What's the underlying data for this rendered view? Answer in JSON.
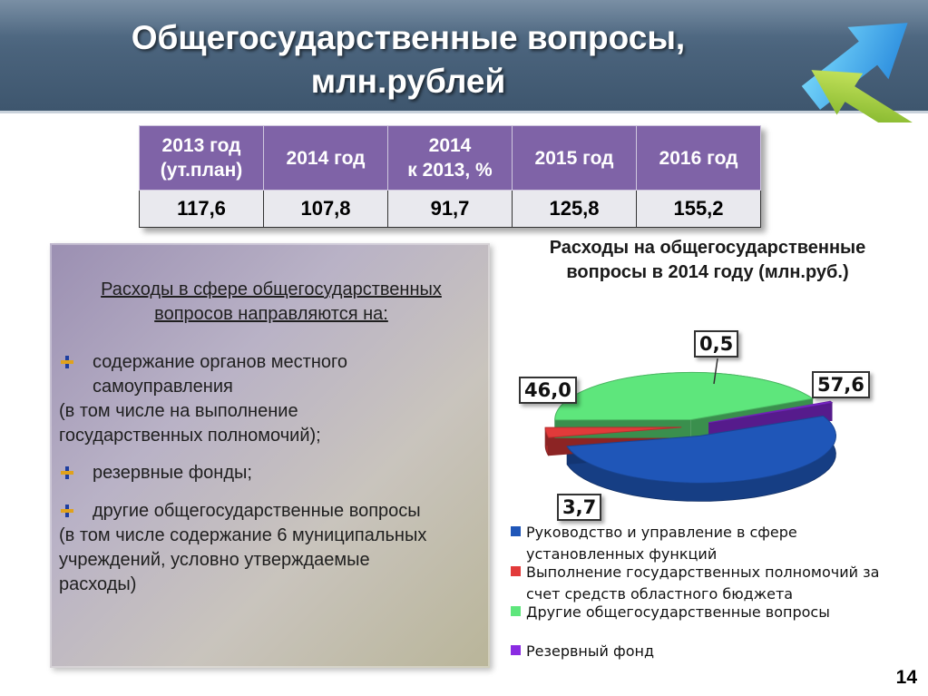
{
  "slide": {
    "title_line1": "Общегосударственные вопросы,",
    "title_line2": "млн.рублей",
    "page_number": "14"
  },
  "table": {
    "headers": [
      "2013 год\n(ут.план)",
      "2014 год",
      "2014\nк 2013, %",
      "2015 год",
      "2016 год"
    ],
    "values": [
      "117,6",
      "107,8",
      "91,7",
      "125,8",
      "155,2"
    ]
  },
  "textbox": {
    "heading": "Расходы в сфере общегосударственных вопросов направляются на:",
    "item1_line1": "содержание органов местного",
    "item1_line2": "самоуправления",
    "item1_line3": "(в том числе на выполнение",
    "item1_line4": "государственных полномочий);",
    "item2_line1": "резервные фонды;",
    "item3_line1": "другие общегосударственные вопросы",
    "item3_line2": "(в том числе содержание 6 муниципальных",
    "item3_line3": "учреждений, условно утверждаемые",
    "item3_line4": "расходы)"
  },
  "chart_data": {
    "type": "pie",
    "title": "Расходы на общегосударственные вопросы в 2014 году (млн.руб.)",
    "categories": [
      "Руководство и управление в сфере установленных функций",
      "Выполнение государственных полномочий за счет средств областного бюджета",
      "Другие общегосударственные вопросы",
      "Резервный фонд"
    ],
    "values": [
      57.6,
      3.7,
      46.0,
      0.5
    ],
    "value_labels": [
      "57,6",
      "3,7",
      "46,0",
      "0,5"
    ],
    "colors": [
      "#1f56b8",
      "#e23a3a",
      "#5ee67c",
      "#8a2be2"
    ],
    "legend_position": "bottom"
  },
  "legend": {
    "item1_line1": "Руководство и управление в сфере",
    "item1_line2": "установленных функций",
    "item2_line1": "Выполнение государственных полномочий за",
    "item2_line2": "счет средств областного бюджета",
    "item3_line1": "Другие общегосударственные вопросы",
    "item4_line1": "Резервный фонд"
  }
}
